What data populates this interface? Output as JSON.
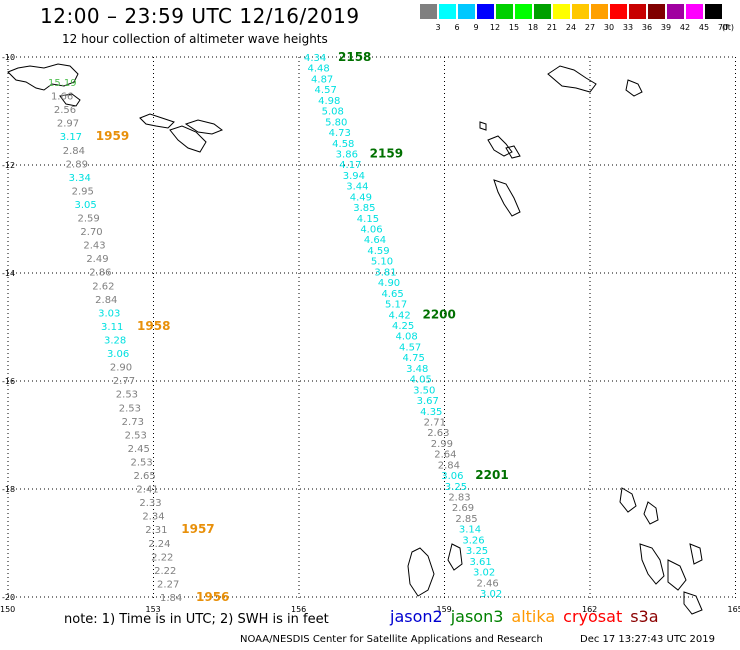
{
  "title": "12:00 – 23:59 UTC 12/16/2019",
  "subtitle": "12 hour collection of altimeter wave heights",
  "colorbar": {
    "unit_label": "(ft)",
    "labels": [
      "3",
      "6",
      "9",
      "12",
      "15",
      "18",
      "21",
      "24",
      "27",
      "30",
      "33",
      "36",
      "39",
      "42",
      "45",
      "70"
    ],
    "colors": [
      "#808080",
      "#00ffff",
      "#00c8ff",
      "#0000ff",
      "#00d000",
      "#00ff00",
      "#00a000",
      "#ffff00",
      "#ffc800",
      "#ffa000",
      "#ff0000",
      "#c80000",
      "#800000",
      "#a000a0",
      "#ff00ff",
      "#000000"
    ]
  },
  "axes": {
    "lon_ticks": [
      "150",
      "153",
      "156",
      "159",
      "162",
      "165"
    ],
    "lat_ticks": [
      "-10",
      "-12",
      "-14",
      "-16",
      "-18",
      "-20"
    ]
  },
  "colors": {
    "gray": "#808080",
    "cyan": "#00e0e0",
    "green": "#50c050",
    "time_green": "#007000",
    "time_orange": "#e8900a"
  },
  "tracks": {
    "west": {
      "points": [
        {
          "v": "15.19",
          "c": "green"
        },
        {
          "v": "1.66",
          "c": "gray"
        },
        {
          "v": "2.56",
          "c": "gray"
        },
        {
          "v": "2.97",
          "c": "gray"
        },
        {
          "v": "3.17",
          "c": "cyan"
        },
        {
          "v": "2.84",
          "c": "gray"
        },
        {
          "v": "2.89",
          "c": "gray"
        },
        {
          "v": "3.34",
          "c": "cyan"
        },
        {
          "v": "2.95",
          "c": "gray"
        },
        {
          "v": "3.05",
          "c": "cyan"
        },
        {
          "v": "2.59",
          "c": "gray"
        },
        {
          "v": "2.70",
          "c": "gray"
        },
        {
          "v": "2.43",
          "c": "gray"
        },
        {
          "v": "2.49",
          "c": "gray"
        },
        {
          "v": "2.86",
          "c": "gray"
        },
        {
          "v": "2.62",
          "c": "gray"
        },
        {
          "v": "2.84",
          "c": "gray"
        },
        {
          "v": "3.03",
          "c": "cyan"
        },
        {
          "v": "3.11",
          "c": "cyan"
        },
        {
          "v": "3.28",
          "c": "cyan"
        },
        {
          "v": "3.06",
          "c": "cyan"
        },
        {
          "v": "2.90",
          "c": "gray"
        },
        {
          "v": "2.77",
          "c": "gray"
        },
        {
          "v": "2.53",
          "c": "gray"
        },
        {
          "v": "2.53",
          "c": "gray"
        },
        {
          "v": "2.73",
          "c": "gray"
        },
        {
          "v": "2.53",
          "c": "gray"
        },
        {
          "v": "2.45",
          "c": "gray"
        },
        {
          "v": "2.53",
          "c": "gray"
        },
        {
          "v": "2.65",
          "c": "gray"
        },
        {
          "v": "2.41",
          "c": "gray"
        },
        {
          "v": "2.33",
          "c": "gray"
        },
        {
          "v": "2.34",
          "c": "gray"
        },
        {
          "v": "2.31",
          "c": "gray"
        },
        {
          "v": "2.24",
          "c": "gray"
        },
        {
          "v": "2.22",
          "c": "gray"
        },
        {
          "v": "2.22",
          "c": "gray"
        },
        {
          "v": "2.27",
          "c": "gray"
        },
        {
          "v": "1.84",
          "c": "gray"
        }
      ],
      "times": [
        {
          "t": "1959",
          "at": 4
        },
        {
          "t": "1958",
          "at": 18
        },
        {
          "t": "1957",
          "at": 33
        },
        {
          "t": "1956",
          "at": 38
        }
      ]
    },
    "east": {
      "points": [
        {
          "v": "4.34",
          "c": "cyan"
        },
        {
          "v": "4.48",
          "c": "cyan"
        },
        {
          "v": "4.87",
          "c": "cyan"
        },
        {
          "v": "4.57",
          "c": "cyan"
        },
        {
          "v": "4.98",
          "c": "cyan"
        },
        {
          "v": "5.08",
          "c": "cyan"
        },
        {
          "v": "5.80",
          "c": "cyan"
        },
        {
          "v": "4.73",
          "c": "cyan"
        },
        {
          "v": "4.58",
          "c": "cyan"
        },
        {
          "v": "3.86",
          "c": "cyan"
        },
        {
          "v": "4.17",
          "c": "cyan"
        },
        {
          "v": "3.94",
          "c": "cyan"
        },
        {
          "v": "3.44",
          "c": "cyan"
        },
        {
          "v": "4.49",
          "c": "cyan"
        },
        {
          "v": "3.85",
          "c": "cyan"
        },
        {
          "v": "4.15",
          "c": "cyan"
        },
        {
          "v": "4.06",
          "c": "cyan"
        },
        {
          "v": "4.64",
          "c": "cyan"
        },
        {
          "v": "4.59",
          "c": "cyan"
        },
        {
          "v": "5.10",
          "c": "cyan"
        },
        {
          "v": "3.81",
          "c": "cyan"
        },
        {
          "v": "4.90",
          "c": "cyan"
        },
        {
          "v": "4.65",
          "c": "cyan"
        },
        {
          "v": "5.17",
          "c": "cyan"
        },
        {
          "v": "4.42",
          "c": "cyan"
        },
        {
          "v": "4.25",
          "c": "cyan"
        },
        {
          "v": "4.08",
          "c": "cyan"
        },
        {
          "v": "4.57",
          "c": "cyan"
        },
        {
          "v": "4.75",
          "c": "cyan"
        },
        {
          "v": "3.48",
          "c": "cyan"
        },
        {
          "v": "4.05",
          "c": "cyan"
        },
        {
          "v": "3.50",
          "c": "cyan"
        },
        {
          "v": "3.67",
          "c": "cyan"
        },
        {
          "v": "4.35",
          "c": "cyan"
        },
        {
          "v": "2.71",
          "c": "gray"
        },
        {
          "v": "2.63",
          "c": "gray"
        },
        {
          "v": "2.99",
          "c": "gray"
        },
        {
          "v": "2.64",
          "c": "gray"
        },
        {
          "v": "2.84",
          "c": "gray"
        },
        {
          "v": "3.06",
          "c": "cyan"
        },
        {
          "v": "3.25",
          "c": "cyan"
        },
        {
          "v": "2.83",
          "c": "gray"
        },
        {
          "v": "2.69",
          "c": "gray"
        },
        {
          "v": "2.85",
          "c": "gray"
        },
        {
          "v": "3.14",
          "c": "cyan"
        },
        {
          "v": "3.26",
          "c": "cyan"
        },
        {
          "v": "3.25",
          "c": "cyan"
        },
        {
          "v": "3.61",
          "c": "cyan"
        },
        {
          "v": "3.02",
          "c": "cyan"
        },
        {
          "v": "2.46",
          "c": "gray"
        },
        {
          "v": "3.02",
          "c": "cyan"
        }
      ],
      "times": [
        {
          "t": "2158",
          "at": 0
        },
        {
          "t": "2159",
          "at": 9
        },
        {
          "t": "2200",
          "at": 24
        },
        {
          "t": "2201",
          "at": 39
        }
      ]
    }
  },
  "note": "note:  1) Time is in UTC;  2) SWH is in feet",
  "legend": [
    {
      "name": "jason2",
      "color": "#0000d0"
    },
    {
      "name": "jason3",
      "color": "#008000"
    },
    {
      "name": "altika",
      "color": "#ff9900"
    },
    {
      "name": "cryosat",
      "color": "#ff0000"
    },
    {
      "name": "s3a",
      "color": "#8b0000"
    }
  ],
  "footer": "NOAA/NESDIS Center for Satellite Applications and Research",
  "timestamp": "Dec 17 13:27:43 UTC 2019"
}
